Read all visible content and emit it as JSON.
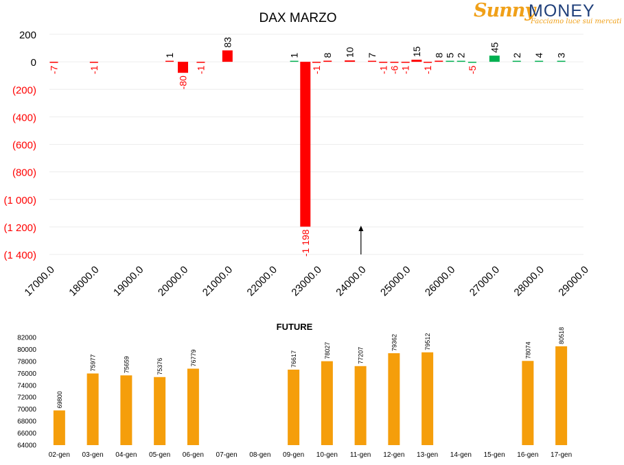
{
  "logo": {
    "brand_part1": "Sunny",
    "brand_part2": "MONEY",
    "tagline": "Facciamo luce sui mercati"
  },
  "colors": {
    "negative": "#ff0000",
    "positive": "#00b050",
    "future_bar": "#f59e0b",
    "axis_text": "#000000",
    "grid": "#ececec"
  },
  "chart_data": [
    {
      "type": "bar",
      "title": "DAX MARZO",
      "xlabel": "",
      "ylabel": "",
      "xlim": [
        17000,
        29000
      ],
      "ylim": [
        -1400,
        200
      ],
      "x_ticks": [
        17000,
        18000,
        19000,
        20000,
        21000,
        22000,
        23000,
        24000,
        25000,
        26000,
        27000,
        28000,
        29000
      ],
      "x_tick_labels": [
        "17000.0",
        "18000.0",
        "19000.0",
        "20000.0",
        "21000.0",
        "22000.0",
        "23000.0",
        "24000.0",
        "25000.0",
        "26000.0",
        "27000.0",
        "28000.0",
        "29000.0"
      ],
      "y_ticks": [
        200,
        0,
        -200,
        -400,
        -600,
        -800,
        -1000,
        -1200,
        -1400
      ],
      "y_tick_labels": [
        "200",
        "0",
        "(200)",
        "(400)",
        "(600)",
        "(800)",
        "(1 000)",
        "(1 200)",
        "(1 400)"
      ],
      "grid": true,
      "marker_arrow_x": 24000,
      "bars": [
        {
          "x": 17100,
          "value": -7,
          "label": "-7"
        },
        {
          "x": 18000,
          "value": -1,
          "label": "-1"
        },
        {
          "x": 19700,
          "value": 1,
          "label": "1"
        },
        {
          "x": 20000,
          "value": -80,
          "label": "-80"
        },
        {
          "x": 20400,
          "value": -1,
          "label": "-1"
        },
        {
          "x": 21000,
          "value": 83,
          "label": "83"
        },
        {
          "x": 22500,
          "value": 1,
          "label": "1"
        },
        {
          "x": 22750,
          "value": -1198,
          "label": "-1 198"
        },
        {
          "x": 23000,
          "value": -1,
          "label": "-1"
        },
        {
          "x": 23250,
          "value": 8,
          "label": "8"
        },
        {
          "x": 23750,
          "value": 10,
          "label": "10"
        },
        {
          "x": 24250,
          "value": 7,
          "label": "7"
        },
        {
          "x": 24500,
          "value": -1,
          "label": "-1"
        },
        {
          "x": 24750,
          "value": -6,
          "label": "-6"
        },
        {
          "x": 25000,
          "value": -1,
          "label": "-1"
        },
        {
          "x": 25250,
          "value": 15,
          "label": "15"
        },
        {
          "x": 25500,
          "value": -1,
          "label": "-1"
        },
        {
          "x": 25750,
          "value": 8,
          "label": "8"
        },
        {
          "x": 26000,
          "value": 5,
          "label": "5"
        },
        {
          "x": 26250,
          "value": 2,
          "label": "2"
        },
        {
          "x": 26500,
          "value": -5,
          "label": "-5"
        },
        {
          "x": 27000,
          "value": 45,
          "label": "45"
        },
        {
          "x": 27500,
          "value": 2,
          "label": "2"
        },
        {
          "x": 28000,
          "value": 4,
          "label": "4"
        },
        {
          "x": 28500,
          "value": 3,
          "label": "3"
        }
      ]
    },
    {
      "type": "bar",
      "title": "FUTURE",
      "xlabel": "",
      "ylabel": "",
      "ylim": [
        64000,
        82000
      ],
      "y_ticks": [
        64000,
        66000,
        68000,
        70000,
        72000,
        74000,
        76000,
        78000,
        80000,
        82000
      ],
      "categories": [
        "02-gen",
        "03-gen",
        "04-gen",
        "05-gen",
        "06-gen",
        "07-gen",
        "08-gen",
        "09-gen",
        "10-gen",
        "11-gen",
        "12-gen",
        "13-gen",
        "14-gen",
        "15-gen",
        "16-gen",
        "17-gen"
      ],
      "values": [
        69800,
        75977,
        75659,
        75376,
        76779,
        null,
        null,
        76617,
        78027,
        77207,
        79362,
        79512,
        null,
        null,
        78074,
        80518
      ],
      "grid": false
    }
  ]
}
